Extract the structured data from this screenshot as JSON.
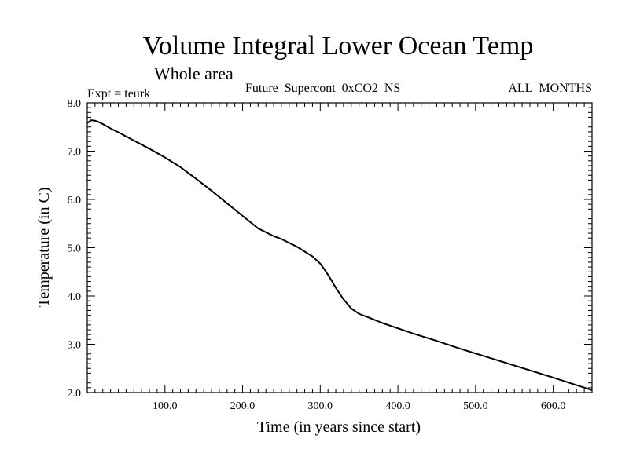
{
  "chart_data": {
    "type": "line",
    "title": "Volume Integral Lower Ocean Temp",
    "subtitle": "Whole area",
    "experiment": "Expt = teurk",
    "run_name": "Future_Supercont_0xCO2_NS",
    "months": "ALL_MONTHS",
    "xlabel": "Time (in years since start)",
    "ylabel": "Temperature (in C)",
    "xlim": [
      0,
      650
    ],
    "ylim": [
      2.0,
      8.0
    ],
    "x_ticks": [
      100,
      200,
      300,
      400,
      500,
      600
    ],
    "x_tick_labels": [
      "100.0",
      "200.0",
      "300.0",
      "400.0",
      "500.0",
      "600.0"
    ],
    "y_ticks": [
      2,
      3,
      4,
      5,
      6,
      7,
      8
    ],
    "y_tick_labels": [
      "2.0",
      "3.0",
      "4.0",
      "5.0",
      "6.0",
      "7.0",
      "8.0"
    ],
    "grid": false,
    "series": [
      {
        "color": "#000000",
        "x": [
          0,
          5,
          10,
          15,
          20,
          30,
          40,
          60,
          80,
          100,
          120,
          140,
          160,
          180,
          200,
          220,
          240,
          250,
          260,
          270,
          280,
          290,
          300,
          305,
          310,
          315,
          320,
          330,
          340,
          350,
          360,
          380,
          400,
          420,
          450,
          480,
          500,
          550,
          600,
          650
        ],
        "y": [
          7.58,
          7.64,
          7.63,
          7.6,
          7.56,
          7.47,
          7.39,
          7.22,
          7.05,
          6.87,
          6.67,
          6.43,
          6.18,
          5.92,
          5.66,
          5.4,
          5.24,
          5.18,
          5.1,
          5.02,
          4.92,
          4.82,
          4.67,
          4.56,
          4.44,
          4.31,
          4.17,
          3.93,
          3.74,
          3.63,
          3.57,
          3.44,
          3.33,
          3.22,
          3.07,
          2.91,
          2.81,
          2.56,
          2.31,
          2.05
        ]
      }
    ]
  }
}
